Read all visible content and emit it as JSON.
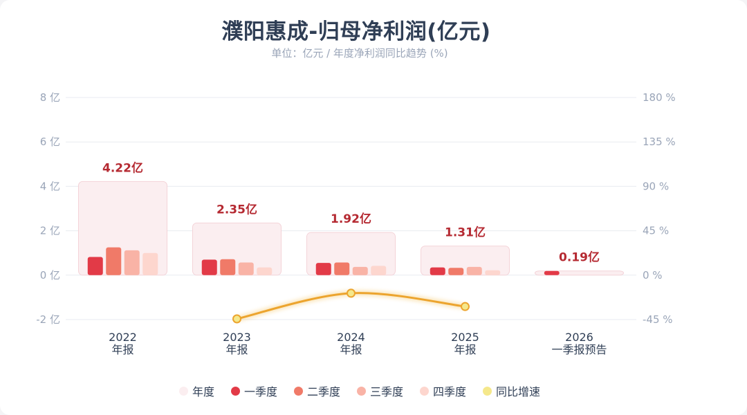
{
  "chart_data": {
    "type": "bar",
    "title": "濮阳惠成-归母净利润(亿元)",
    "subtitle": "单位：亿元 / 年度净利润同比趋势 (%)",
    "categories": [
      {
        "year": "2022",
        "label": "年报"
      },
      {
        "year": "2023",
        "label": "年报"
      },
      {
        "year": "2024",
        "label": "年报"
      },
      {
        "year": "2025",
        "label": "年报"
      },
      {
        "year": "2026",
        "label": "一季报预告"
      }
    ],
    "annual_labels": [
      "4.22亿",
      "2.35亿",
      "1.92亿",
      "1.31亿",
      "0.19亿"
    ],
    "series": [
      {
        "name": "年度",
        "type": "bar",
        "color": "#fbeef0",
        "values": [
          4.22,
          2.35,
          1.92,
          1.31,
          0.19
        ]
      },
      {
        "name": "一季度",
        "type": "bar",
        "color": "#e23a47",
        "values": [
          0.82,
          0.7,
          0.55,
          0.35,
          0.19
        ]
      },
      {
        "name": "二季度",
        "type": "bar",
        "color": "#f07a68",
        "values": [
          1.25,
          0.72,
          0.57,
          0.33,
          null
        ]
      },
      {
        "name": "三季度",
        "type": "bar",
        "color": "#f9b3a6",
        "values": [
          1.12,
          0.57,
          0.37,
          0.37,
          null
        ]
      },
      {
        "name": "四季度",
        "type": "bar",
        "color": "#fdd6ce",
        "values": [
          1.0,
          0.35,
          0.42,
          0.22,
          null
        ]
      },
      {
        "name": "同比增速",
        "type": "line",
        "color": "#f5e88b",
        "line_color": "#eca42e",
        "values": [
          null,
          -44.3,
          -18.3,
          -31.8,
          null
        ]
      }
    ],
    "y_left": {
      "min": -2,
      "max": 8,
      "ticks": [
        -2,
        0,
        2,
        4,
        6,
        8
      ],
      "tick_labels": [
        "-2 亿",
        "0 亿",
        "2 亿",
        "4 亿",
        "6 亿",
        "8 亿"
      ]
    },
    "y_right": {
      "min": -45,
      "max": 180,
      "ticks": [
        -45,
        0,
        45,
        90,
        135,
        180
      ],
      "tick_labels": [
        "-45 %",
        "0 %",
        "45 %",
        "90 %",
        "135 %",
        "180 %"
      ]
    },
    "grid": true,
    "legend_position": "bottom"
  }
}
